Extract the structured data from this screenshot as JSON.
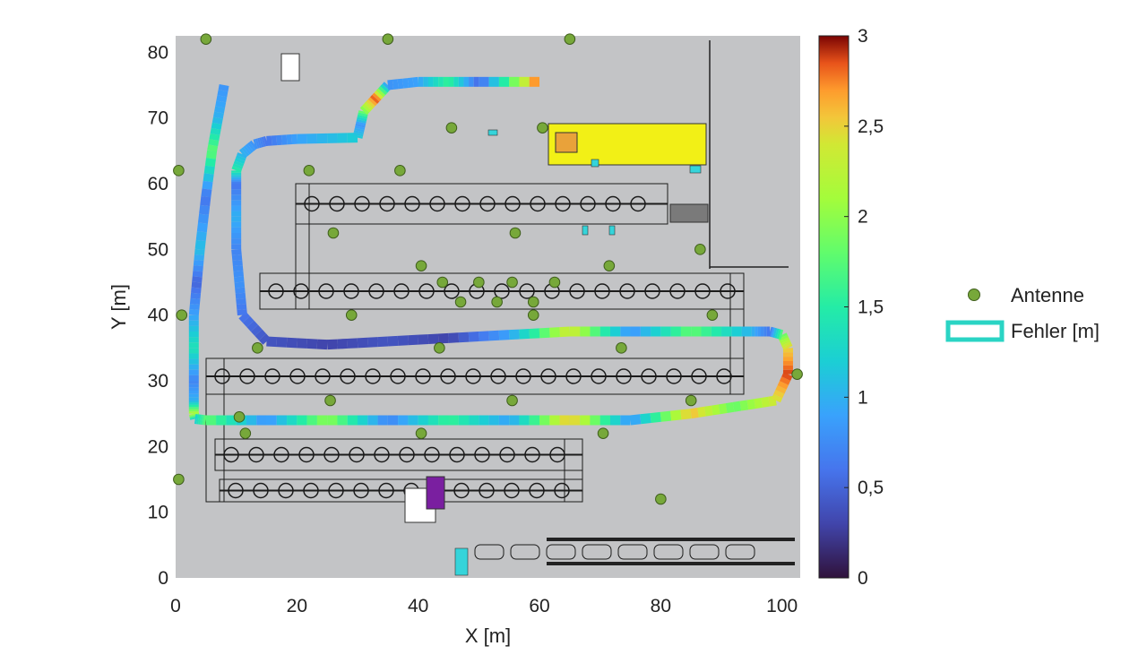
{
  "chart_data": {
    "type": "scatter",
    "title": "",
    "xlabel": "X [m]",
    "ylabel": "Y [m]",
    "xlim": [
      0,
      103
    ],
    "ylim": [
      0,
      82.5
    ],
    "xticks": [
      0,
      20,
      40,
      60,
      80,
      100
    ],
    "yticks": [
      0,
      10,
      20,
      30,
      40,
      50,
      60,
      70,
      80
    ],
    "grid": false,
    "legend": {
      "placement": "right",
      "entries": [
        {
          "name": "Antenne",
          "kind": "marker",
          "color": "#77a83a"
        },
        {
          "name": "Fehler [m]",
          "kind": "path",
          "color": "#2ad4c4"
        }
      ]
    },
    "colorbar": {
      "range": [
        0,
        3
      ],
      "ticks": [
        "0",
        "0,5",
        "1",
        "1,5",
        "2",
        "2,5",
        "3"
      ],
      "tick_values": [
        0,
        0.5,
        1,
        1.5,
        2,
        2.5,
        3
      ],
      "colormap": "turbo"
    },
    "antennas": {
      "name": "Antenne",
      "x": [
        5,
        35,
        65,
        45.5,
        60.5,
        0.5,
        22,
        37,
        26,
        56,
        40.5,
        44,
        50,
        55.5,
        62.5,
        71.5,
        86.5,
        47,
        53,
        59,
        29,
        59,
        1,
        13.5,
        43.5,
        73.5,
        88.5,
        102.5,
        25.5,
        55.5,
        85,
        10.5,
        11.5,
        40.5,
        70.5,
        0.5,
        80
      ],
      "y": [
        82,
        82,
        82,
        68.5,
        68.5,
        62,
        62,
        62,
        52.5,
        52.5,
        47.5,
        45,
        45,
        45,
        45,
        47.5,
        50,
        42,
        42,
        42,
        40,
        40,
        40,
        35,
        35,
        35,
        40,
        31,
        27,
        27,
        27,
        24.5,
        22,
        22,
        22,
        15,
        12
      ]
    },
    "fehler_path": {
      "name": "Fehler [m]",
      "x": [
        8,
        7,
        6,
        5,
        4,
        3.5,
        3,
        3,
        3,
        3,
        3,
        3.2,
        5,
        15,
        25,
        35,
        45,
        55,
        65,
        75,
        85,
        92,
        99,
        101,
        101,
        100,
        98,
        95,
        85,
        75,
        65,
        55,
        45,
        35,
        25,
        15,
        11,
        10.5,
        10,
        10,
        10,
        10,
        11,
        13,
        15,
        20,
        30,
        30.5,
        31,
        33,
        35,
        40,
        45,
        50,
        60
      ],
      "y": [
        75,
        70,
        65,
        58,
        50,
        45,
        40,
        35,
        30,
        27,
        25,
        24.2,
        24,
        24,
        24,
        24,
        24,
        24,
        24,
        24,
        25,
        26,
        27,
        31,
        35,
        37,
        37.5,
        37.5,
        37.5,
        37.5,
        37.5,
        37,
        36.5,
        36,
        35.5,
        36,
        40,
        45,
        50,
        55,
        60,
        62,
        64.5,
        66,
        66.5,
        66.8,
        67,
        69,
        71,
        73,
        75,
        75.5,
        75.5,
        75.5,
        75.5
      ],
      "error": [
        0.8,
        1.0,
        1.8,
        0.6,
        1.1,
        0.5,
        0.9,
        1.4,
        0.7,
        1.0,
        2.2,
        1.2,
        1.8,
        0.8,
        2.0,
        0.7,
        1.6,
        0.9,
        2.6,
        0.8,
        2.6,
        1.8,
        2.4,
        2.9,
        2.5,
        1.8,
        0.6,
        1.0,
        1.8,
        0.8,
        2.4,
        0.9,
        0.3,
        0.4,
        0.3,
        0.4,
        0.6,
        0.8,
        0.7,
        1.0,
        0.6,
        1.5,
        1.0,
        0.8,
        0.6,
        0.9,
        1.2,
        0.8,
        1.9,
        2.9,
        0.8,
        0.9,
        1.6,
        0.5,
        2.9
      ]
    }
  }
}
